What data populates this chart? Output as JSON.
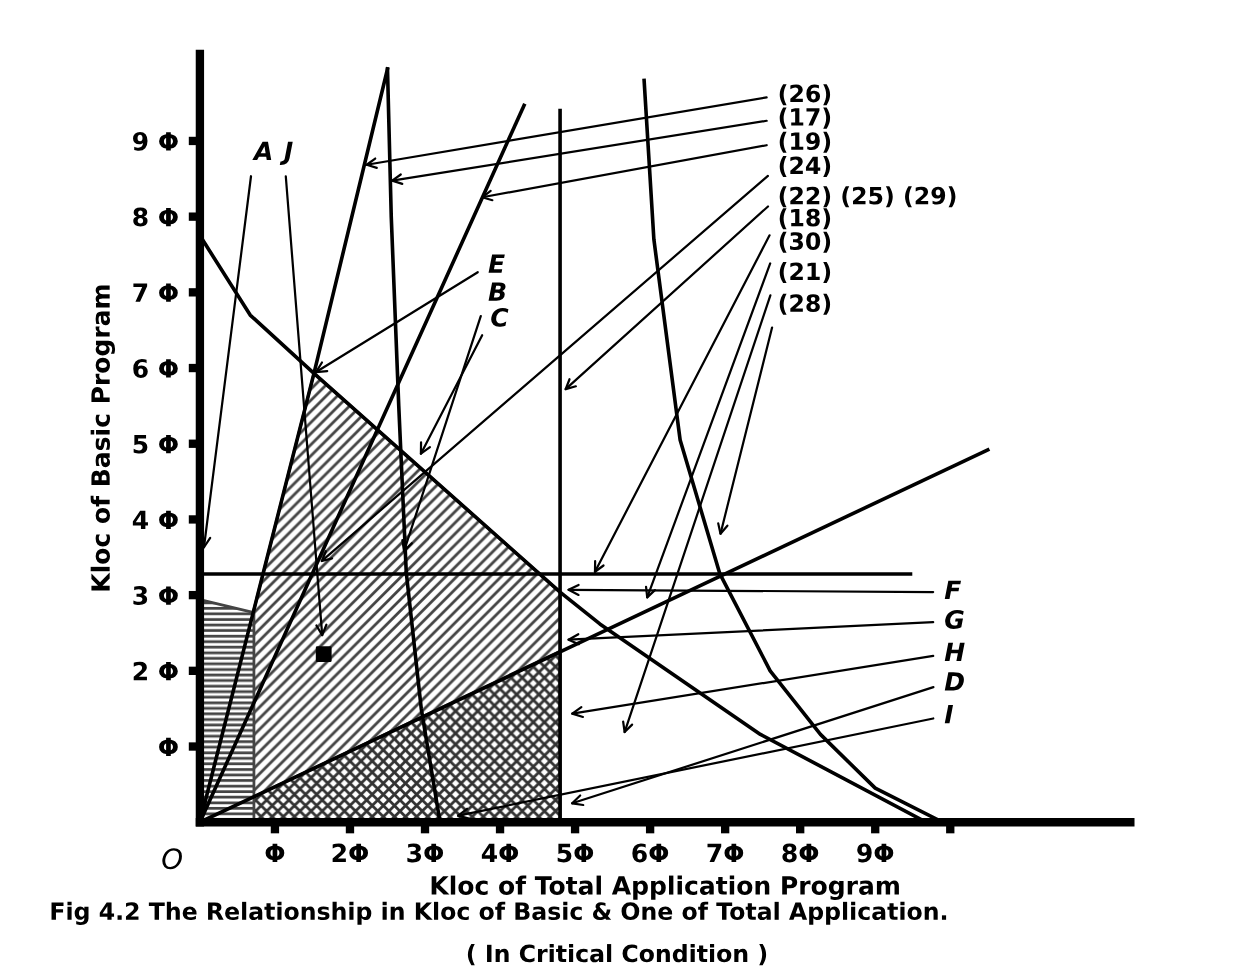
{
  "chart_data": {
    "type": "line",
    "title": "Fig 4.2 The Relationship in Kloc of Basic & One of Total Application.",
    "subtitle": "( In Critical Condition )",
    "xlabel": "Kloc of Total Application Program",
    "ylabel": "Kloc of Basic Program",
    "xlim": [
      0,
      12.4
    ],
    "ylim": [
      0,
      10.15
    ],
    "xticks": [
      {
        "value": 1,
        "label": "Φ"
      },
      {
        "value": 2,
        "label": "2Φ"
      },
      {
        "value": 3,
        "label": "3Φ"
      },
      {
        "value": 4,
        "label": "4Φ"
      },
      {
        "value": 5,
        "label": "5Φ"
      },
      {
        "value": 6,
        "label": "6Φ"
      },
      {
        "value": 7,
        "label": "7Φ"
      },
      {
        "value": 8,
        "label": "8Φ"
      },
      {
        "value": 9,
        "label": "9Φ"
      },
      {
        "value": 10,
        "label": null
      }
    ],
    "yticks": [
      {
        "value": 1,
        "label": "Φ"
      },
      {
        "value": 2,
        "label": "2 Φ"
      },
      {
        "value": 3,
        "label": "3 Φ"
      },
      {
        "value": 4,
        "label": "4 Φ"
      },
      {
        "value": 5,
        "label": "5 Φ"
      },
      {
        "value": 6,
        "label": "6 Φ"
      },
      {
        "value": 7,
        "label": "7 Φ"
      },
      {
        "value": 8,
        "label": "8 Φ"
      },
      {
        "value": 9,
        "label": "9 Φ"
      }
    ],
    "grid": false,
    "marker": "none",
    "line_style": "solid",
    "series": [
      {
        "type": "area",
        "color": "#444444",
        "x": [
          0,
          1.52,
          4.8
        ],
        "values": [
          0,
          5.93,
          3.04
        ]
      },
      {
        "type": "area",
        "color": "#333333",
        "x": [
          0,
          4.8
        ],
        "values": [
          0,
          2.26
        ]
      },
      {
        "type": "area",
        "color": "#444444",
        "x": [
          0,
          0.72
        ],
        "values": [
          2.94,
          2.77
        ]
      },
      {
        "color": "#000000",
        "x": [
          0,
          0.67,
          1.52,
          4.8,
          5.33,
          7.47,
          9.68
        ],
        "values": [
          7.75,
          6.7,
          5.93,
          3.04,
          2.62,
          1.16,
          0
        ]
      },
      {
        "color": "#000000",
        "x": [
          0,
          9.47
        ],
        "values": [
          3.28,
          3.28
        ]
      },
      {
        "color": "#000000",
        "x": [
          4.8,
          4.8
        ],
        "values": [
          0,
          9.4
        ]
      },
      {
        "color": "#000000",
        "x": [
          0,
          1.52,
          2.5
        ],
        "values": [
          0,
          5.93,
          9.95
        ]
      },
      {
        "color": "#000000",
        "x": [
          2.5,
          2.55,
          2.65,
          2.75,
          2.95,
          3.2
        ],
        "values": [
          9.95,
          8.0,
          5.5,
          3.3,
          1.5,
          0
        ]
      },
      {
        "color": "#000000",
        "x": [
          0,
          4.32
        ],
        "values": [
          0,
          9.47
        ]
      },
      {
        "color": "#000000",
        "x": [
          5.92,
          6.05,
          6.4,
          6.93,
          7.6,
          8.27,
          9.0,
          9.9
        ],
        "values": [
          9.8,
          7.7,
          5.05,
          3.28,
          2.0,
          1.16,
          0.45,
          0
        ]
      },
      {
        "color": "#000000",
        "x": [
          0,
          10.5
        ],
        "values": [
          0,
          4.92
        ]
      }
    ],
    "annotations": [
      {
        "text": "(26)",
        "x": 2.19,
        "y": 8.68
      },
      {
        "text": "(17)",
        "x": 2.53,
        "y": 8.47
      },
      {
        "text": "(19)",
        "x": 3.73,
        "y": 8.25
      },
      {
        "text": "(24)",
        "x": 1.6,
        "y": 3.43
      },
      {
        "text": "(22) (25) (29)",
        "x": 4.85,
        "y": 5.7
      },
      {
        "text": "(18)",
        "x": 5.25,
        "y": 3.28
      },
      {
        "text": "(30)",
        "x": 5.95,
        "y": 2.94
      },
      "(21)",
      {
        "text": "(28)",
        "x": 6.93,
        "y": 3.78
      },
      "A",
      "J",
      {
        "text": "E",
        "x": 1.52,
        "y": 5.93
      },
      {
        "text": "B",
        "x": 2.71,
        "y": 3.55
      },
      {
        "text": "C",
        "x": 2.93,
        "y": 4.84
      },
      {
        "text": "F",
        "x": 4.88,
        "y": 3.07
      },
      {
        "text": "G",
        "x": 4.88,
        "y": 2.41
      },
      {
        "text": "H",
        "x": 4.93,
        "y": 1.43
      },
      {
        "text": "D",
        "x": 4.93,
        "y": 0.24
      },
      {
        "text": "I",
        "x": 3.41,
        "y": 0.08
      },
      {
        "text": "O",
        "x": 0,
        "y": 0
      }
    ]
  }
}
